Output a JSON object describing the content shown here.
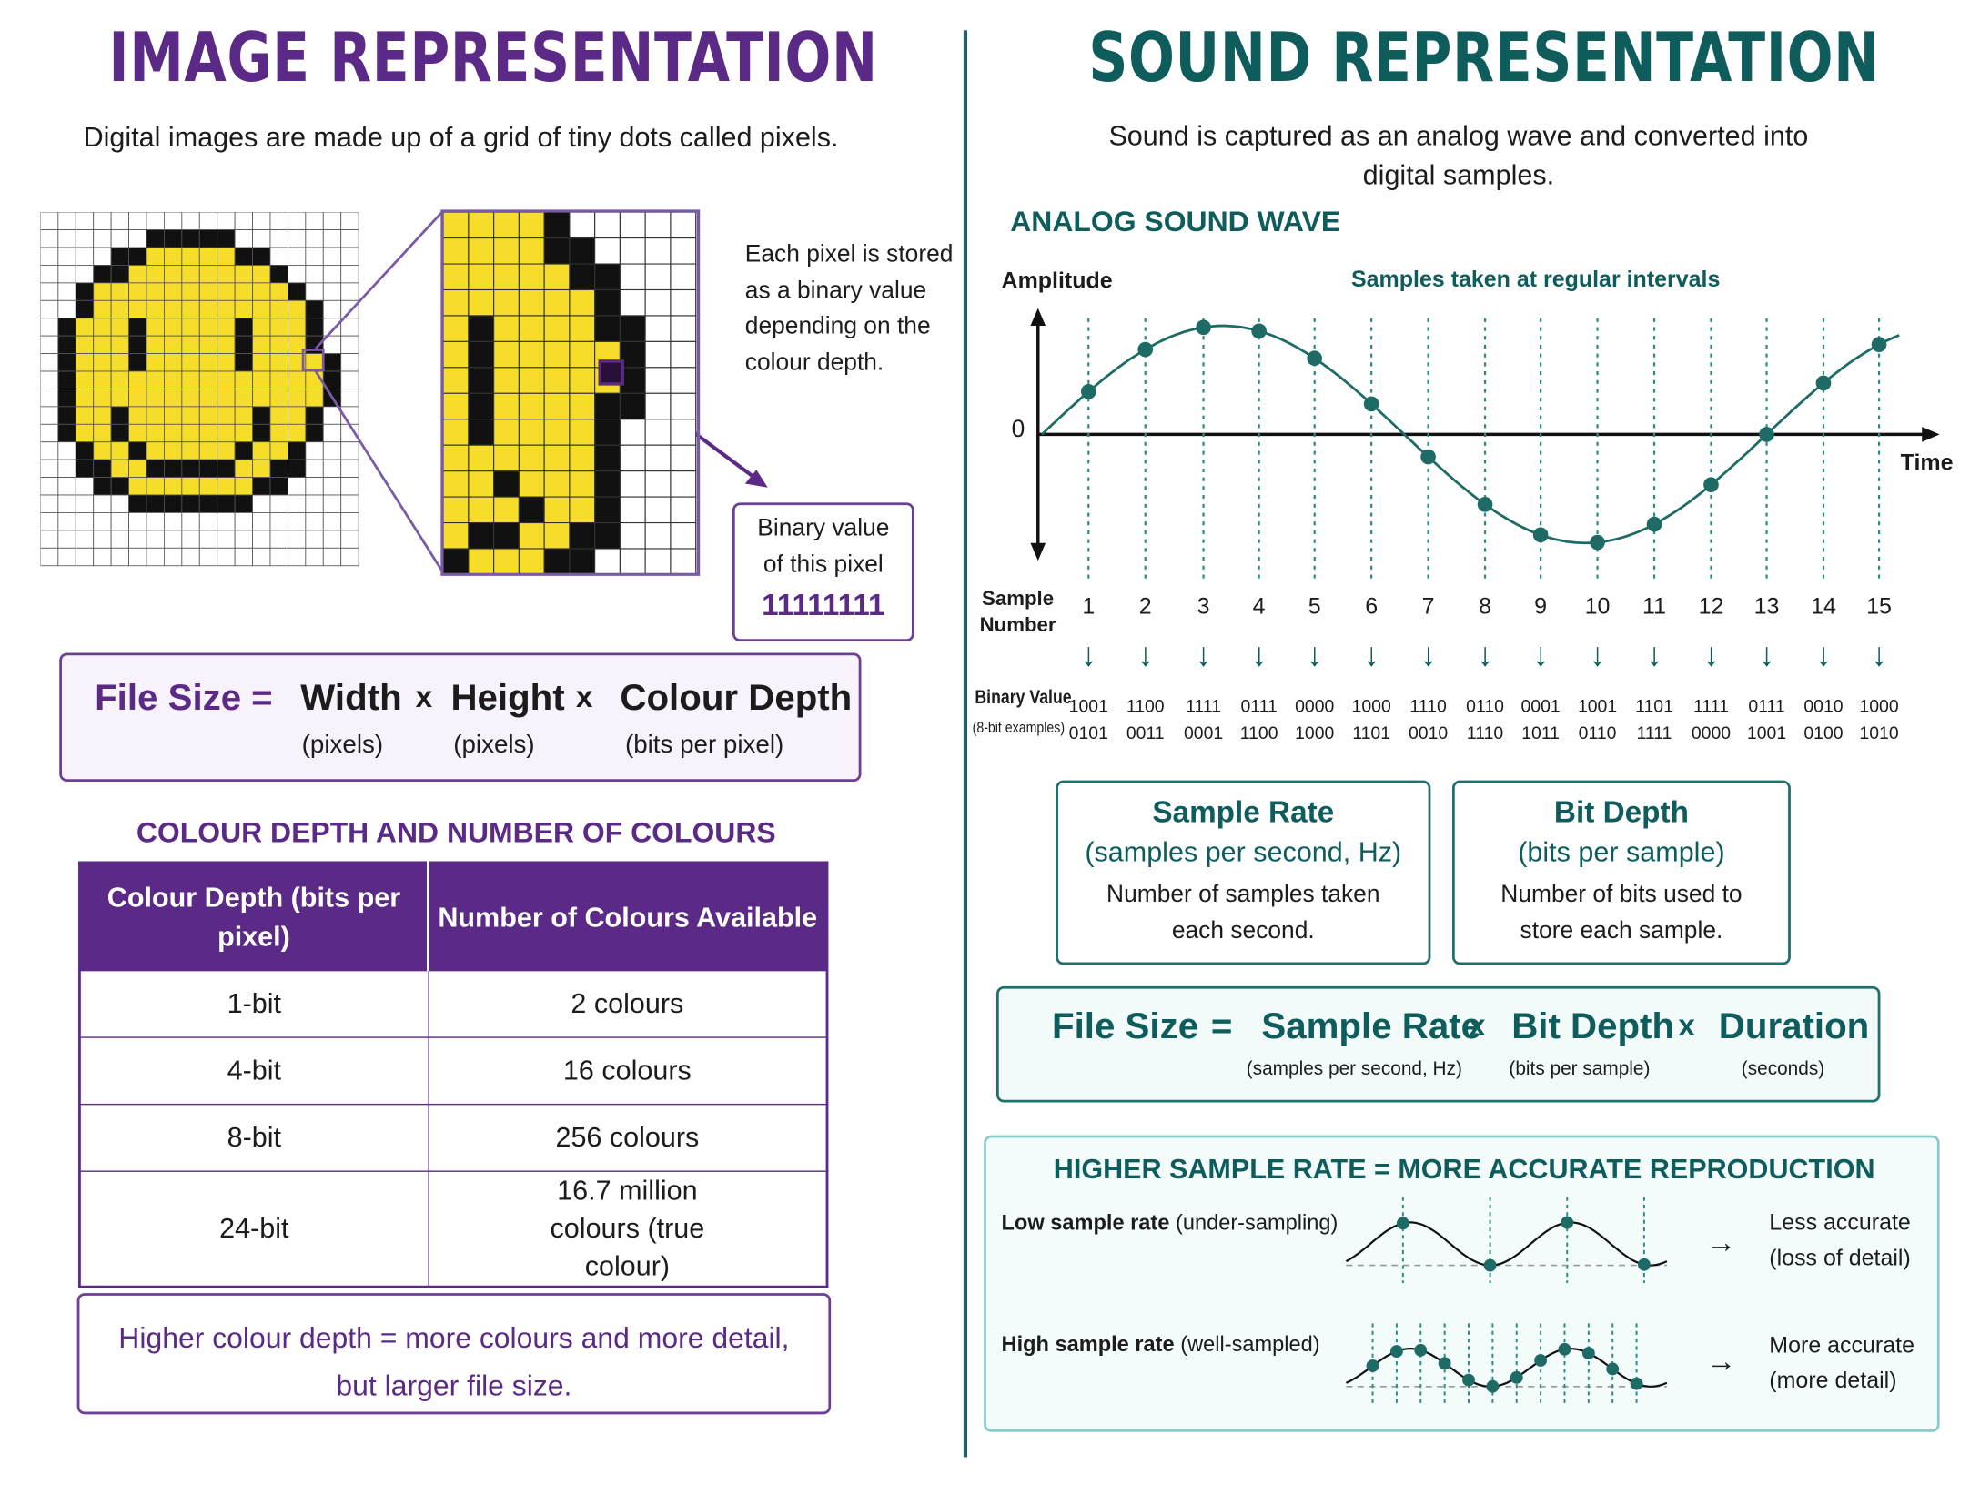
{
  "image": {
    "title": "IMAGE REPRESENTATION",
    "subtitle": "Digital images are made up of a grid of tiny dots called pixels.",
    "pixel_note": "Each pixel is stored as a binary value depending on the colour depth.",
    "binary_box": {
      "label": "Binary value of this pixel",
      "value": "11111111"
    },
    "formula": {
      "lhs": "File Size",
      "eq": "=",
      "terms": [
        {
          "name": "Width",
          "unit": "(pixels)"
        },
        {
          "name": "Height",
          "unit": "(pixels)"
        },
        {
          "name": "Colour Depth",
          "unit": "(bits per pixel)"
        }
      ],
      "times": "x"
    },
    "table": {
      "heading": "COLOUR DEPTH AND NUMBER OF COLOURS",
      "headers": [
        "Colour Depth (bits per pixel)",
        "Number of Colours Available"
      ],
      "rows": [
        [
          "1-bit",
          "2 colours"
        ],
        [
          "4-bit",
          "16 colours"
        ],
        [
          "8-bit",
          "256 colours"
        ],
        [
          "24-bit",
          "16.7 million colours (true colour)"
        ]
      ]
    },
    "note": "Higher colour depth = more colours and more detail, but larger file size.",
    "colors": {
      "accent": "#5b2a86",
      "pixel_yellow": "#f5dd2a"
    }
  },
  "sound": {
    "title": "SOUND REPRESENTATION",
    "subtitle": "Sound is captured as an analog wave and converted into digital samples.",
    "wave_heading": "ANALOG SOUND WAVE",
    "y_label": "Amplitude",
    "x_label": "Time",
    "zero_label": "0",
    "samples_note": "Samples taken at regular intervals",
    "sample_number_label": "Sample Number",
    "binary_label": "Binary Value",
    "binary_sublabel": "(8-bit examples)",
    "samples": [
      {
        "n": "1",
        "b1": "1001",
        "b2": "0101"
      },
      {
        "n": "2",
        "b1": "1100",
        "b2": "0011"
      },
      {
        "n": "3",
        "b1": "1111",
        "b2": "0001"
      },
      {
        "n": "4",
        "b1": "0111",
        "b2": "1100"
      },
      {
        "n": "5",
        "b1": "0000",
        "b2": "1000"
      },
      {
        "n": "6",
        "b1": "1000",
        "b2": "1101"
      },
      {
        "n": "7",
        "b1": "1110",
        "b2": "0010"
      },
      {
        "n": "8",
        "b1": "0110",
        "b2": "1110"
      },
      {
        "n": "9",
        "b1": "0001",
        "b2": "1011"
      },
      {
        "n": "10",
        "b1": "1001",
        "b2": "0110"
      },
      {
        "n": "11",
        "b1": "1101",
        "b2": "1111"
      },
      {
        "n": "12",
        "b1": "1111",
        "b2": "0000"
      },
      {
        "n": "13",
        "b1": "0111",
        "b2": "1001"
      },
      {
        "n": "14",
        "b1": "0010",
        "b2": "0100"
      },
      {
        "n": "15",
        "b1": "1000",
        "b2": "1010"
      }
    ],
    "sample_rate_box": {
      "title": "Sample Rate",
      "subtitle": "(samples per second, Hz)",
      "desc": "Number of samples taken each second."
    },
    "bit_depth_box": {
      "title": "Bit Depth",
      "subtitle": "(bits per sample)",
      "desc": "Number of bits used to store each sample."
    },
    "formula": {
      "lhs": "File Size",
      "eq": "=",
      "times": "x",
      "terms": [
        {
          "name": "Sample Rate",
          "unit": "(samples per second, Hz)"
        },
        {
          "name": "Bit Depth",
          "unit": "(bits per sample)"
        },
        {
          "name": "Duration",
          "unit": "(seconds)"
        }
      ]
    },
    "accuracy": {
      "heading": "HIGHER SAMPLE RATE = MORE ACCURATE REPRODUCTION",
      "low": {
        "label_bold": "Low sample rate",
        "label_rest": "(under-sampling)",
        "result": "Less accurate (loss of detail)"
      },
      "high": {
        "label_bold": "High sample rate",
        "label_rest": "(well-sampled)",
        "result": "More accurate (more detail)"
      },
      "arrow": "→"
    },
    "colors": {
      "accent": "#0f5c5c",
      "dot": "#1e6b66"
    }
  }
}
